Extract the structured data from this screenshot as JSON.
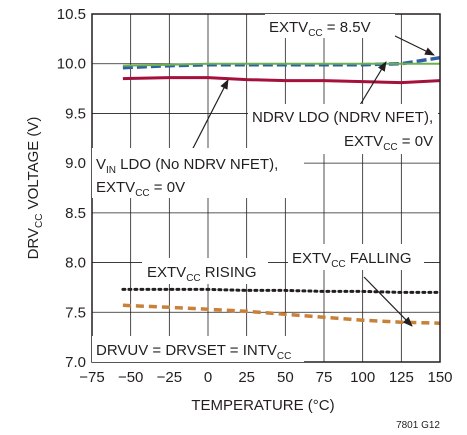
{
  "chart_data": {
    "type": "line",
    "xlabel": "TEMPERATURE (°C)",
    "ylabel": {
      "pre": "DRV",
      "sub": "CC",
      "post": " VOLTAGE (V)"
    },
    "xlim": [
      -75,
      150
    ],
    "ylim": [
      7.0,
      10.5
    ],
    "xticks": [
      "−75",
      "−50",
      "−25",
      "0",
      "25",
      "50",
      "75",
      "100",
      "125",
      "150"
    ],
    "xtick_values": [
      -75,
      -50,
      -25,
      0,
      25,
      50,
      75,
      100,
      125,
      150
    ],
    "yticks": [
      "7.0",
      "7.5",
      "8.0",
      "8.5",
      "9.0",
      "9.5",
      "10.0",
      "10.5"
    ],
    "ytick_values": [
      7.0,
      7.5,
      8.0,
      8.5,
      9.0,
      9.5,
      10.0,
      10.5
    ],
    "grid": true,
    "colors": {
      "blue": "#2e5fa8",
      "green": "#6ab04c",
      "red": "#a5103c",
      "black": "#231f20",
      "orange": "#c8813a"
    },
    "series": [
      {
        "key": "extv85",
        "color": "#2e5fa8",
        "dash": "10,4",
        "width": 3.5,
        "x": [
          -55,
          -25,
          0,
          25,
          50,
          75,
          100,
          125,
          150
        ],
        "y": [
          9.96,
          9.98,
          9.99,
          9.99,
          9.99,
          9.99,
          9.99,
          10.0,
          10.06
        ]
      },
      {
        "key": "ndrv_ldo",
        "color": "#6ab04c",
        "dash": "",
        "width": 2,
        "x": [
          -55,
          -25,
          0,
          25,
          50,
          75,
          100,
          125,
          150
        ],
        "y": [
          9.98,
          9.99,
          10.0,
          10.0,
          10.0,
          10.0,
          10.0,
          10.0,
          10.0
        ]
      },
      {
        "key": "vin_ldo",
        "color": "#a5103c",
        "dash": "",
        "width": 3,
        "x": [
          -55,
          -25,
          0,
          25,
          50,
          75,
          100,
          125,
          150
        ],
        "y": [
          9.85,
          9.86,
          9.86,
          9.84,
          9.83,
          9.83,
          9.82,
          9.81,
          9.83
        ]
      },
      {
        "key": "rising",
        "color": "#231f20",
        "dash": "2,4",
        "width": 3,
        "x": [
          -55,
          -25,
          0,
          25,
          50,
          75,
          100,
          125,
          150
        ],
        "y": [
          7.73,
          7.73,
          7.73,
          7.72,
          7.72,
          7.71,
          7.71,
          7.7,
          7.7
        ]
      },
      {
        "key": "falling",
        "color": "#c8813a",
        "dash": "8,5",
        "width": 3.5,
        "x": [
          -55,
          -25,
          0,
          25,
          50,
          75,
          100,
          125,
          150
        ],
        "y": [
          7.57,
          7.55,
          7.53,
          7.51,
          7.48,
          7.45,
          7.42,
          7.4,
          7.39
        ]
      }
    ],
    "annotations": {
      "extv85": {
        "pre": "EXTV",
        "sub": "CC",
        "post": " = 8.5V"
      },
      "ndrv_1": "NDRV LDO (NDRV NFET),",
      "ndrv_2": {
        "pre": "EXTV",
        "sub": "CC",
        "post": " = 0V"
      },
      "vin_1": {
        "pre": "V",
        "sub": "IN",
        "post": " LDO (No NDRV NFET),"
      },
      "vin_2": {
        "pre": "EXTV",
        "sub": "CC",
        "post": " = 0V"
      },
      "rising": {
        "pre": "EXTV",
        "sub": "CC",
        "post": " RISING"
      },
      "falling": {
        "pre": "EXTV",
        "sub": "CC",
        "post": " FALLING"
      },
      "drvuv": {
        "pre": "DRVUV = DRVSET = INTV",
        "sub": "CC",
        "post": ""
      }
    },
    "figure_id": "7801 G12"
  }
}
